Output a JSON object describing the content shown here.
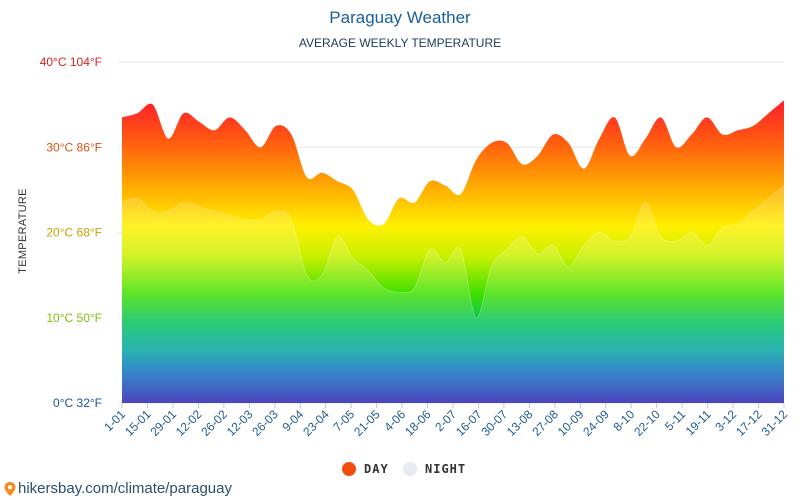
{
  "header": {
    "title": "Paraguay Weather",
    "subtitle": "AVERAGE WEEKLY TEMPERATURE"
  },
  "chart_data": {
    "type": "area",
    "ylabel": "TEMPERATURE",
    "ylim": [
      0,
      40
    ],
    "y_ticks": [
      {
        "value": 40,
        "label": "40°C 104°F",
        "color": "#e02020"
      },
      {
        "value": 30,
        "label": "30°C 86°F",
        "color": "#e05010"
      },
      {
        "value": 20,
        "label": "20°C 68°F",
        "color": "#c9a000"
      },
      {
        "value": 10,
        "label": "10°C 50°F",
        "color": "#7ac10a"
      },
      {
        "value": 0,
        "label": "0°C 32°F",
        "color": "#1f4f9e"
      }
    ],
    "x_tick_labels": [
      "1-01",
      "15-01",
      "29-01",
      "12-02",
      "26-02",
      "12-03",
      "26-03",
      "9-04",
      "23-04",
      "7-05",
      "21-05",
      "4-06",
      "18-06",
      "2-07",
      "16-07",
      "30-07",
      "13-08",
      "27-08",
      "10-09",
      "24-09",
      "8-10",
      "22-10",
      "5-11",
      "19-11",
      "3-12",
      "17-12",
      "31-12"
    ],
    "series": [
      {
        "name": "DAY",
        "color": "#f04e0e",
        "values": [
          33.5,
          34.0,
          35.0,
          31.0,
          34.0,
          33.0,
          32.0,
          33.5,
          32.0,
          30.0,
          32.5,
          31.5,
          26.5,
          27.0,
          26.0,
          25.0,
          21.5,
          21.0,
          24.0,
          23.5,
          26.0,
          25.5,
          24.5,
          28.5,
          30.5,
          30.5,
          28.0,
          29.0,
          31.5,
          30.5,
          27.5,
          31.0,
          33.5,
          29.0,
          31.0,
          33.5,
          30.0,
          31.5,
          33.5,
          31.5,
          32.0,
          32.5,
          34.0,
          35.5
        ]
      },
      {
        "name": "NIGHT",
        "color": "#e6ecf2",
        "values": [
          23.5,
          24.0,
          22.5,
          22.5,
          23.5,
          23.0,
          22.5,
          22.0,
          21.5,
          21.5,
          22.5,
          21.5,
          15.0,
          15.0,
          19.5,
          17.0,
          15.5,
          13.5,
          13.0,
          13.5,
          18.0,
          16.5,
          18.0,
          10.0,
          16.0,
          18.0,
          19.5,
          17.5,
          18.5,
          16.0,
          18.5,
          20.0,
          19.0,
          19.5,
          23.5,
          19.5,
          19.0,
          20.0,
          18.5,
          20.5,
          21.0,
          22.5,
          24.0,
          25.5
        ]
      }
    ]
  },
  "legend": {
    "day_label": "DAY",
    "night_label": "NIGHT",
    "day_color": "#f04e0e",
    "night_color": "#e6ecf2"
  },
  "source": {
    "text": "hikersbay.com/climate/paraguay"
  }
}
